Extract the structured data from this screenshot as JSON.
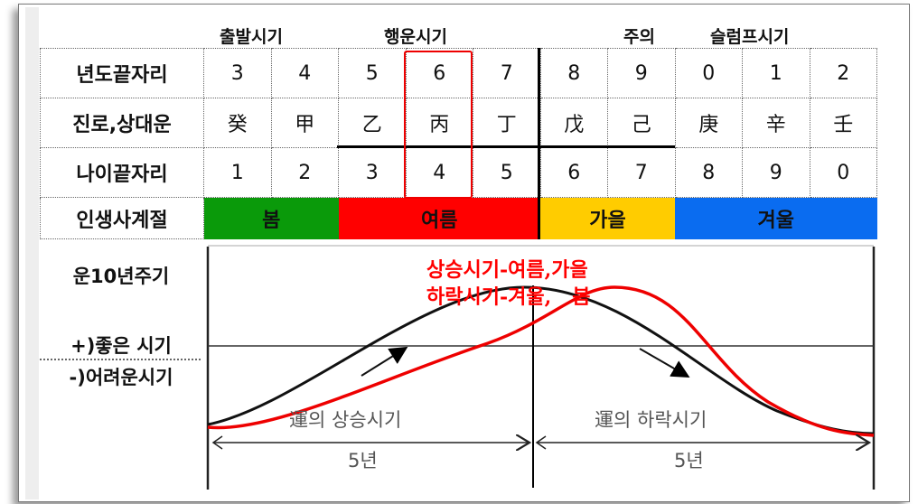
{
  "headers": [
    "출발시기",
    "행운시기",
    "주의",
    "슬럼프시기"
  ],
  "rows": [
    {
      "label": "년도끝자리",
      "cells": [
        "3",
        "4",
        "5",
        "6",
        "7",
        "8",
        "9",
        "0",
        "1",
        "2"
      ]
    },
    {
      "label": "진로,상대운",
      "cells": [
        "癸",
        "甲",
        "乙",
        "丙",
        "丁",
        "戊",
        "己",
        "庚",
        "辛",
        "壬"
      ]
    },
    {
      "label": "나이끝자리",
      "cells": [
        "1",
        "2",
        "3",
        "4",
        "5",
        "6",
        "7",
        "8",
        "9",
        "0"
      ]
    }
  ],
  "seasons": {
    "label": "인생사계절",
    "items": [
      {
        "name": "봄",
        "color": "#0a9a0a"
      },
      {
        "name": "여름",
        "color": "#ff0000"
      },
      {
        "name": "가을",
        "color": "#ffcc00"
      },
      {
        "name": "겨울",
        "color": "#0a6cf0"
      }
    ]
  },
  "highlight_column": "6",
  "side": {
    "cycle": "운10년주기",
    "good": "+)좋은 시기",
    "bad": "-)어려운시기"
  },
  "diagram": {
    "annotation_line1": "상승시기-여름,가을",
    "annotation_line2": "하락시기-겨울,   봄",
    "rise_label": "運의 상승시기",
    "fall_label": "運의 하락시기",
    "span_left": "5년",
    "span_right": "5년",
    "colors": {
      "original_curve": "#000000",
      "shifted_curve": "#e00000",
      "annotation": "#ff0000"
    }
  }
}
